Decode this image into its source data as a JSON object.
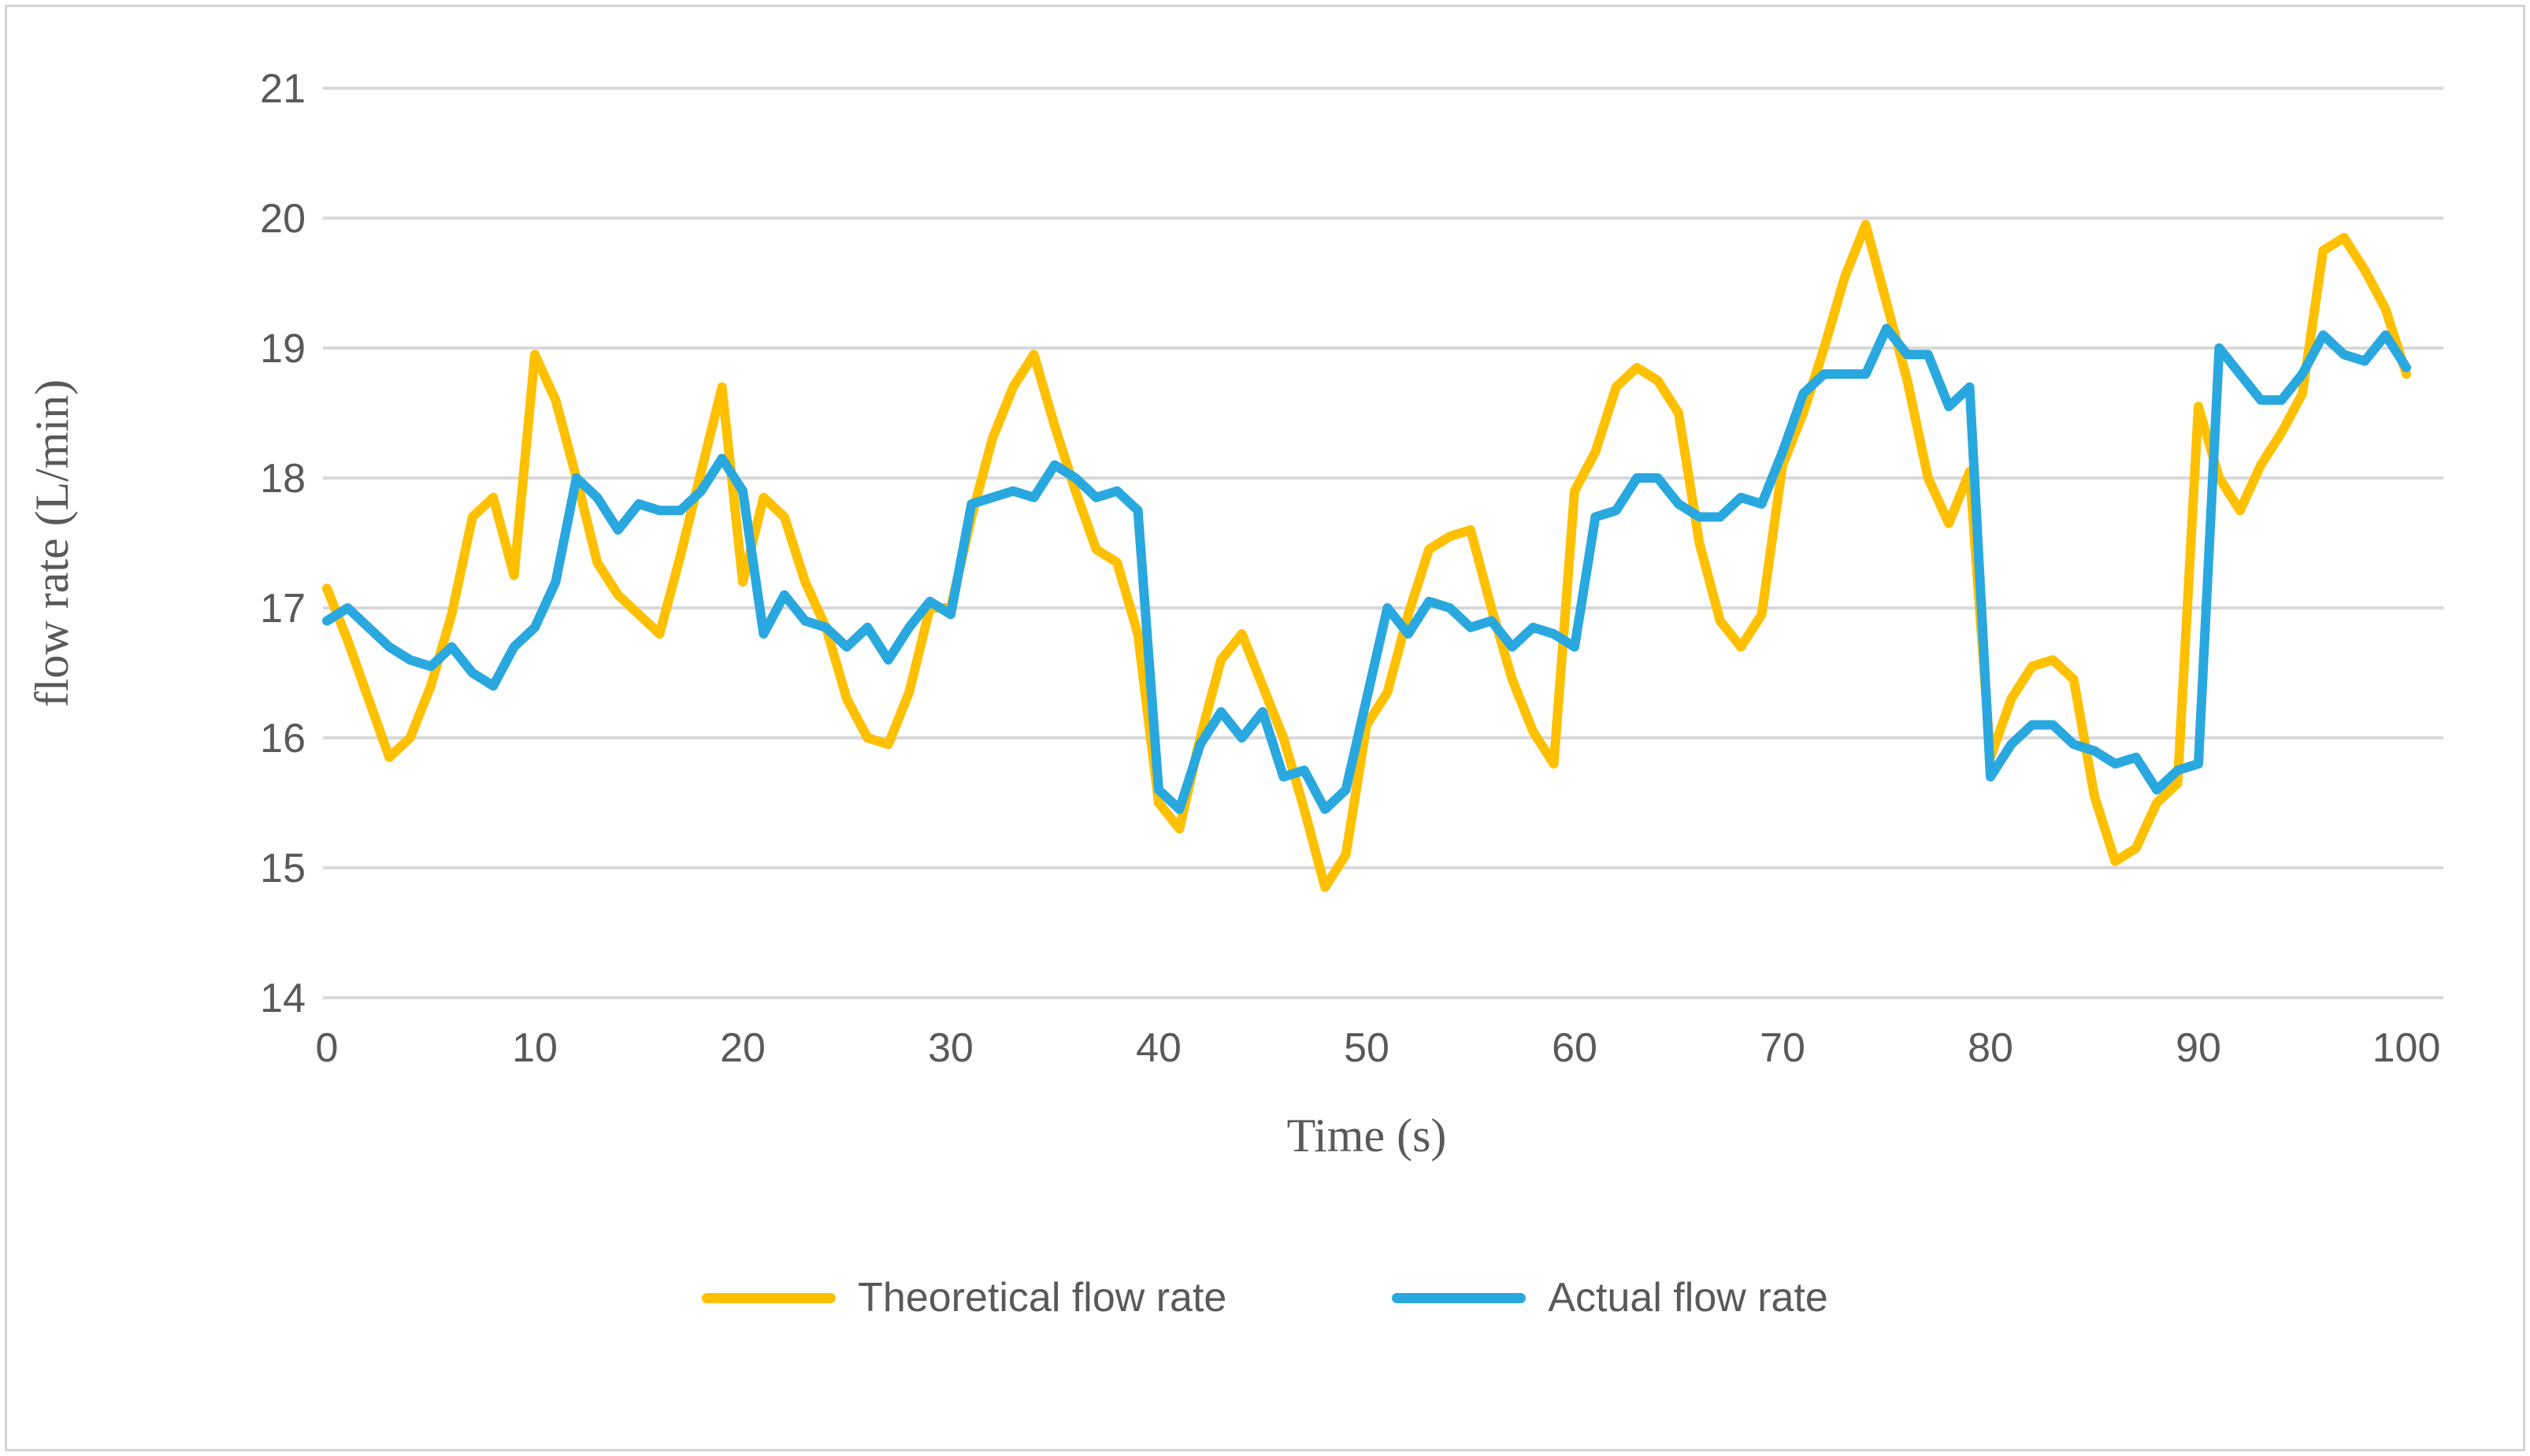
{
  "figure": {
    "y_axis_title": "flow rate (L/min)",
    "x_axis_title": "Time (s)",
    "legend": [
      {
        "label": "Theoretical flow rate",
        "color": "#FFC000"
      },
      {
        "label": "Actual flow rate",
        "color": "#29A8DF"
      }
    ]
  },
  "chart_data": {
    "type": "line",
    "title": "",
    "xlabel": "Time (s)",
    "ylabel": "flow rate (L/min)",
    "xlim": [
      0,
      100
    ],
    "ylim": [
      14,
      21
    ],
    "x_ticks": [
      0,
      10,
      20,
      30,
      40,
      50,
      60,
      70,
      80,
      90,
      100
    ],
    "y_ticks": [
      14,
      15,
      16,
      17,
      18,
      19,
      20,
      21
    ],
    "grid": "horizontal",
    "grid_color": "#d9d9d9",
    "tick_color": "#595959",
    "x_step": 1,
    "legend_position": "bottom",
    "series": [
      {
        "name": "Theoretical flow rate",
        "color": "#FFC000",
        "values": [
          17.15,
          16.75,
          16.3,
          15.85,
          16.0,
          16.4,
          16.95,
          17.7,
          17.85,
          17.25,
          18.95,
          18.6,
          18.0,
          17.35,
          17.1,
          16.95,
          16.8,
          17.4,
          18.05,
          18.7,
          17.2,
          17.85,
          17.7,
          17.2,
          16.85,
          16.3,
          16.0,
          15.95,
          16.35,
          17.0,
          17.0,
          17.7,
          18.3,
          18.7,
          18.95,
          18.4,
          17.9,
          17.45,
          17.35,
          16.8,
          15.5,
          15.3,
          16.0,
          16.6,
          16.8,
          16.4,
          16.0,
          15.45,
          14.85,
          15.1,
          16.1,
          16.35,
          16.95,
          17.45,
          17.55,
          17.6,
          17.0,
          16.45,
          16.05,
          15.8,
          17.9,
          18.2,
          18.7,
          18.85,
          18.75,
          18.5,
          17.5,
          16.9,
          16.7,
          16.95,
          18.1,
          18.5,
          19.0,
          19.55,
          19.95,
          19.35,
          18.75,
          18.0,
          17.65,
          18.05,
          15.85,
          16.3,
          16.55,
          16.6,
          16.45,
          15.55,
          15.05,
          15.15,
          15.5,
          15.65,
          18.55,
          18.0,
          17.75,
          18.1,
          18.35,
          18.65,
          19.75,
          19.85,
          19.6,
          19.3,
          18.8
        ]
      },
      {
        "name": "Actual flow rate",
        "color": "#29A8DF",
        "values": [
          16.9,
          17.0,
          16.85,
          16.7,
          16.6,
          16.55,
          16.7,
          16.5,
          16.4,
          16.7,
          16.85,
          17.2,
          18.0,
          17.85,
          17.6,
          17.8,
          17.75,
          17.75,
          17.9,
          18.15,
          17.9,
          16.8,
          17.1,
          16.9,
          16.85,
          16.7,
          16.85,
          16.6,
          16.85,
          17.05,
          16.95,
          17.8,
          17.85,
          17.9,
          17.85,
          18.1,
          18.0,
          17.85,
          17.9,
          17.75,
          15.6,
          15.45,
          15.95,
          16.2,
          16.0,
          16.2,
          15.7,
          15.75,
          15.45,
          15.6,
          16.3,
          17.0,
          16.8,
          17.05,
          17.0,
          16.85,
          16.9,
          16.7,
          16.85,
          16.8,
          16.7,
          17.7,
          17.75,
          18.0,
          18.0,
          17.8,
          17.7,
          17.7,
          17.85,
          17.8,
          18.2,
          18.65,
          18.8,
          18.8,
          18.8,
          19.15,
          18.95,
          18.95,
          18.55,
          18.7,
          15.7,
          15.95,
          16.1,
          16.1,
          15.95,
          15.9,
          15.8,
          15.85,
          15.6,
          15.75,
          15.8,
          19.0,
          18.8,
          18.6,
          18.6,
          18.8,
          19.1,
          18.95,
          18.9,
          19.1,
          18.85
        ]
      }
    ]
  }
}
